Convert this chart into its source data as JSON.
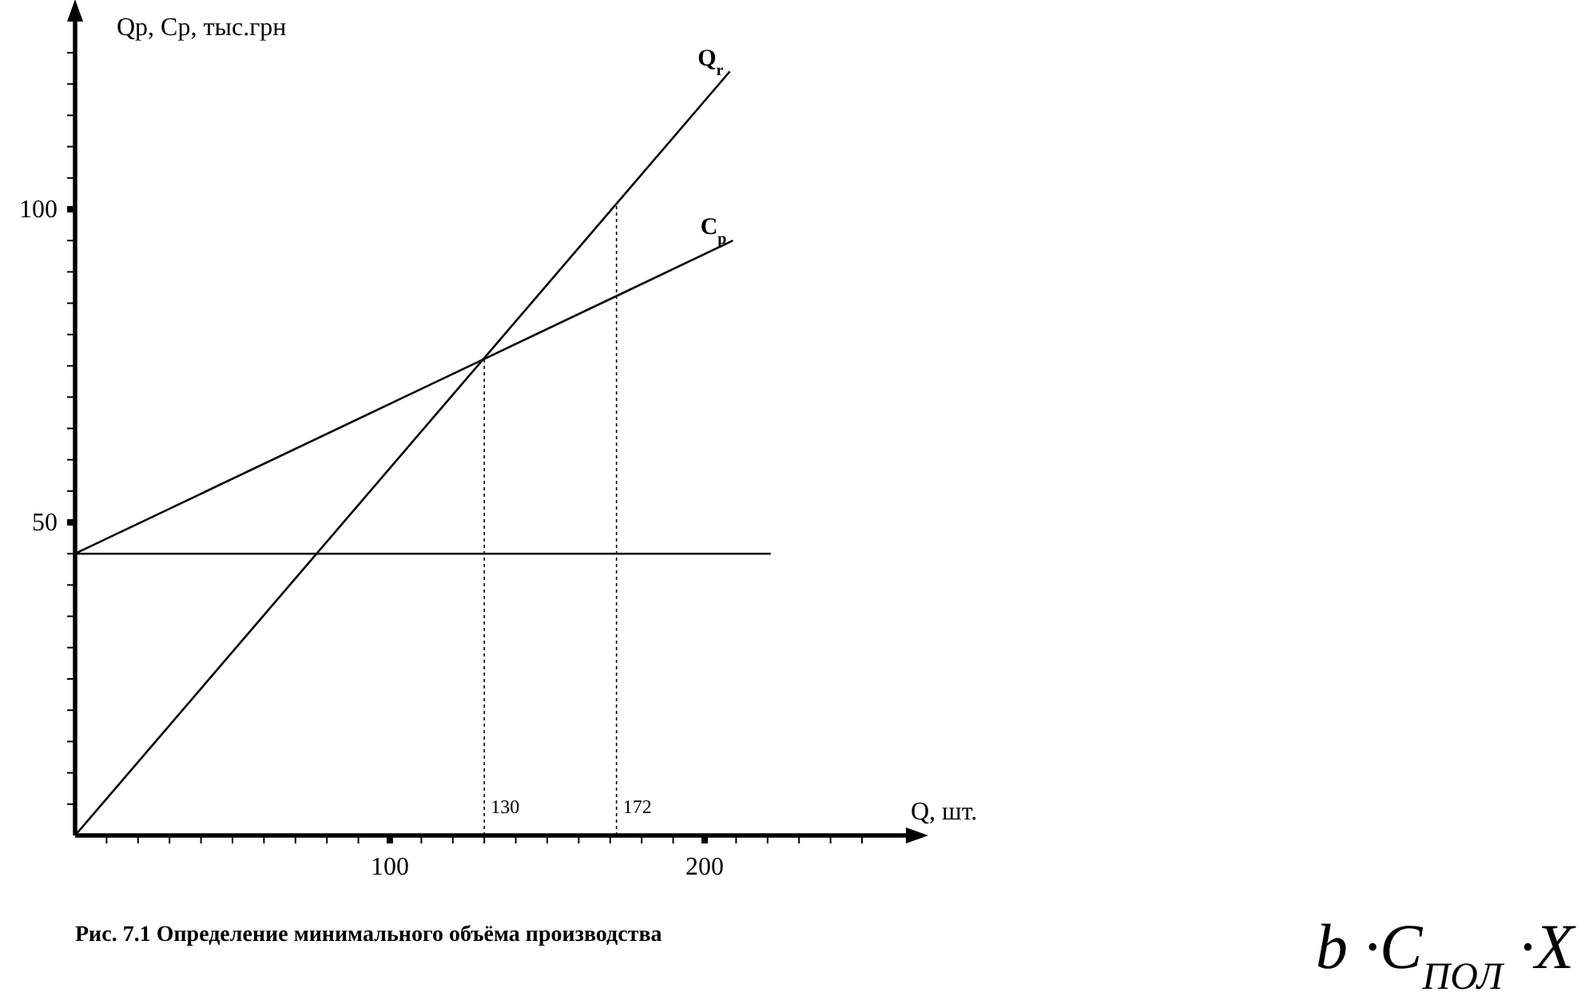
{
  "chart_data": {
    "type": "line",
    "xlabel": "Q, шт.",
    "ylabel": "Qp, Cp, тыс.грн",
    "xlim": [
      0,
      268
    ],
    "ylim": [
      0,
      132
    ],
    "xticks": [
      {
        "value": 10,
        "label": null
      },
      {
        "value": 20,
        "label": null
      },
      {
        "value": 30,
        "label": null
      },
      {
        "value": 40,
        "label": null
      },
      {
        "value": 50,
        "label": null
      },
      {
        "value": 60,
        "label": null
      },
      {
        "value": 70,
        "label": null
      },
      {
        "value": 80,
        "label": null
      },
      {
        "value": 90,
        "label": null
      },
      100,
      {
        "value": 110,
        "label": null
      },
      {
        "value": 120,
        "label": null
      },
      {
        "value": 130,
        "label": null
      },
      {
        "value": 140,
        "label": null
      },
      {
        "value": 150,
        "label": null
      },
      {
        "value": 160,
        "label": null
      },
      {
        "value": 170,
        "label": null
      },
      {
        "value": 180,
        "label": null
      },
      {
        "value": 190,
        "label": null
      },
      200,
      {
        "value": 210,
        "label": null
      },
      {
        "value": 220,
        "label": null
      },
      {
        "value": 230,
        "label": null
      },
      {
        "value": 240,
        "label": null
      },
      {
        "value": 250,
        "label": null
      }
    ],
    "yticks": [
      {
        "value": 5,
        "label": null
      },
      {
        "value": 10,
        "label": null
      },
      {
        "value": 15,
        "label": null
      },
      {
        "value": 20,
        "label": null
      },
      {
        "value": 25,
        "label": null
      },
      {
        "value": 30,
        "label": null
      },
      {
        "value": 35,
        "label": null
      },
      {
        "value": 40,
        "label": null
      },
      {
        "value": 45,
        "label": null
      },
      50,
      {
        "value": 55,
        "label": null
      },
      {
        "value": 60,
        "label": null
      },
      {
        "value": 65,
        "label": null
      },
      {
        "value": 70,
        "label": null
      },
      {
        "value": 75,
        "label": null
      },
      {
        "value": 80,
        "label": null
      },
      {
        "value": 85,
        "label": null
      },
      {
        "value": 90,
        "label": null
      },
      {
        "value": 95,
        "label": null
      },
      100,
      {
        "value": 105,
        "label": null
      },
      {
        "value": 110,
        "label": null
      },
      {
        "value": 115,
        "label": null
      },
      {
        "value": 120,
        "label": null
      },
      {
        "value": 125,
        "label": null
      }
    ],
    "grid": false,
    "legend": false,
    "marker": "none",
    "line_style": "solid",
    "series": [
      {
        "name": "Q$_{r}$",
        "color": "#000000",
        "x": [
          0,
          208
        ],
        "values": [
          0,
          122
        ]
      },
      {
        "name": "C$_{p}$",
        "color": "#000000",
        "x": [
          0,
          209
        ],
        "values": [
          45,
          95
        ]
      },
      {
        "color": "#000000",
        "x": [
          0,
          221
        ],
        "values": [
          45,
          45
        ]
      },
      {
        "color": "#000000",
        "x": [
          130,
          130
        ],
        "values": [
          0,
          76
        ],
        "line_style": "dotted"
      },
      {
        "color": "#000000",
        "x": [
          172,
          172
        ],
        "values": [
          0,
          101
        ],
        "line_style": "dotted"
      }
    ],
    "annotations": [
      {
        "text": "130",
        "x": 130,
        "y": 0
      },
      {
        "text": "172",
        "x": 172,
        "y": 0
      },
      "Рис. 7.1 Определение минимального объёма производства",
      "b ·C$_{ПОЛ}$ ·X"
    ]
  }
}
